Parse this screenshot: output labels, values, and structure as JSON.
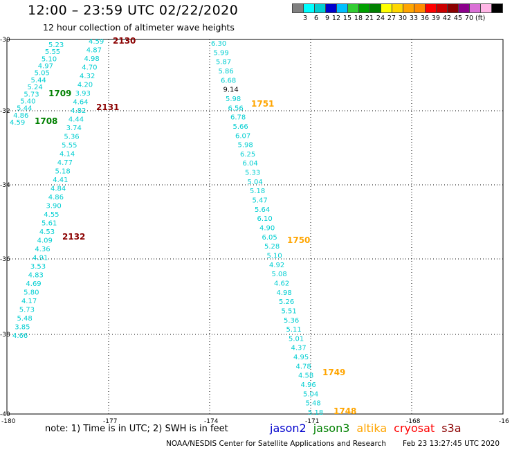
{
  "title": "12:00 – 23:59 UTC 02/22/2020",
  "subtitle": "12 hour collection of altimeter wave heights",
  "colorbar": {
    "colors": [
      "#808080",
      "#00ffff",
      "#00ced1",
      "#0000cd",
      "#00bfff",
      "#32cd32",
      "#00a000",
      "#008000",
      "#ffff00",
      "#ffd700",
      "#ffa500",
      "#ff8c00",
      "#ff0000",
      "#cc0000",
      "#8b0000",
      "#8b008b",
      "#da70d6",
      "#ffb6e6",
      "#000000"
    ],
    "labels": [
      "3",
      "6",
      "9",
      "12",
      "15",
      "18",
      "21",
      "24",
      "27",
      "30",
      "33",
      "36",
      "39",
      "42",
      "45",
      "70",
      "(ft)"
    ]
  },
  "axes": {
    "lat_labels": [
      "-30",
      "-32",
      "-34",
      "-36",
      "-38",
      "-40"
    ],
    "lon_labels": [
      "-180",
      "-177",
      "-174",
      "-171",
      "-168",
      "-16"
    ]
  },
  "passes": [
    {
      "values": [
        "5.23",
        "5.55",
        "5.10",
        "4.97",
        "5.05",
        "5.44",
        "5.24",
        "5.73",
        "5.40",
        "5.44",
        "4.86",
        "4.59"
      ],
      "color": "#00ced1"
    },
    {
      "values": [
        "4.59",
        "4.87",
        "4.98",
        "4.70",
        "4.32",
        "4.20",
        "3.93",
        "4.64",
        "4.82",
        "4.44",
        "3.74",
        "5.36",
        "5.55",
        "4.14",
        "4.77",
        "5.18",
        "4.41",
        "4.84",
        "4.86",
        "3.90",
        "4.55",
        "5.61",
        "4.53",
        "4.09",
        "4.36",
        "4.91",
        "3.53",
        "4.83",
        "4.69",
        "5.80",
        "4.17",
        "5.73",
        "5.48",
        "3.85",
        "4.66"
      ],
      "color": "#00ced1"
    },
    {
      "values": [
        "6.30",
        "5.99",
        "5.87",
        "5.86",
        "6.68",
        "9.14",
        "5.98",
        "6.56",
        "6.78",
        "5.66",
        "6.07",
        "5.98",
        "6.25",
        "6.04",
        "5.33",
        "5.04",
        "5.18",
        "5.47",
        "5.64",
        "6.10",
        "4.90",
        "6.05",
        "5.28",
        "5.10",
        "4.92",
        "5.08",
        "4.62",
        "4.98",
        "5.26",
        "5.51",
        "5.36",
        "5.11",
        "5.01",
        "4.37",
        "4.95",
        "4.78",
        "4.58",
        "4.96",
        "5.04",
        "5.48",
        "5.18"
      ],
      "color": "#00ced1"
    }
  ],
  "time_labels": [
    {
      "text": "2130",
      "color": "#8b0000"
    },
    {
      "text": "2131",
      "color": "#8b0000"
    },
    {
      "text": "2132",
      "color": "#8b0000"
    },
    {
      "text": "1709",
      "color": "#008000"
    },
    {
      "text": "1708",
      "color": "#008000"
    },
    {
      "text": "1751",
      "color": "#ffa500"
    },
    {
      "text": "1750",
      "color": "#ffa500"
    },
    {
      "text": "1749",
      "color": "#ffa500"
    },
    {
      "text": "1748",
      "color": "#ffa500"
    }
  ],
  "note": "note:  1) Time is in UTC;  2) SWH is in feet",
  "legend": [
    {
      "label": "jason2",
      "color": "#0000cd"
    },
    {
      "label": "jason3",
      "color": "#008000"
    },
    {
      "label": "altika",
      "color": "#ffa500"
    },
    {
      "label": "cryosat",
      "color": "#ff0000"
    },
    {
      "label": "s3a",
      "color": "#8b0000"
    }
  ],
  "credit": "NOAA/NESDIS Center for Satellite Applications and Research",
  "timestamp": "Feb 23 13:27:45 UTC 2020"
}
